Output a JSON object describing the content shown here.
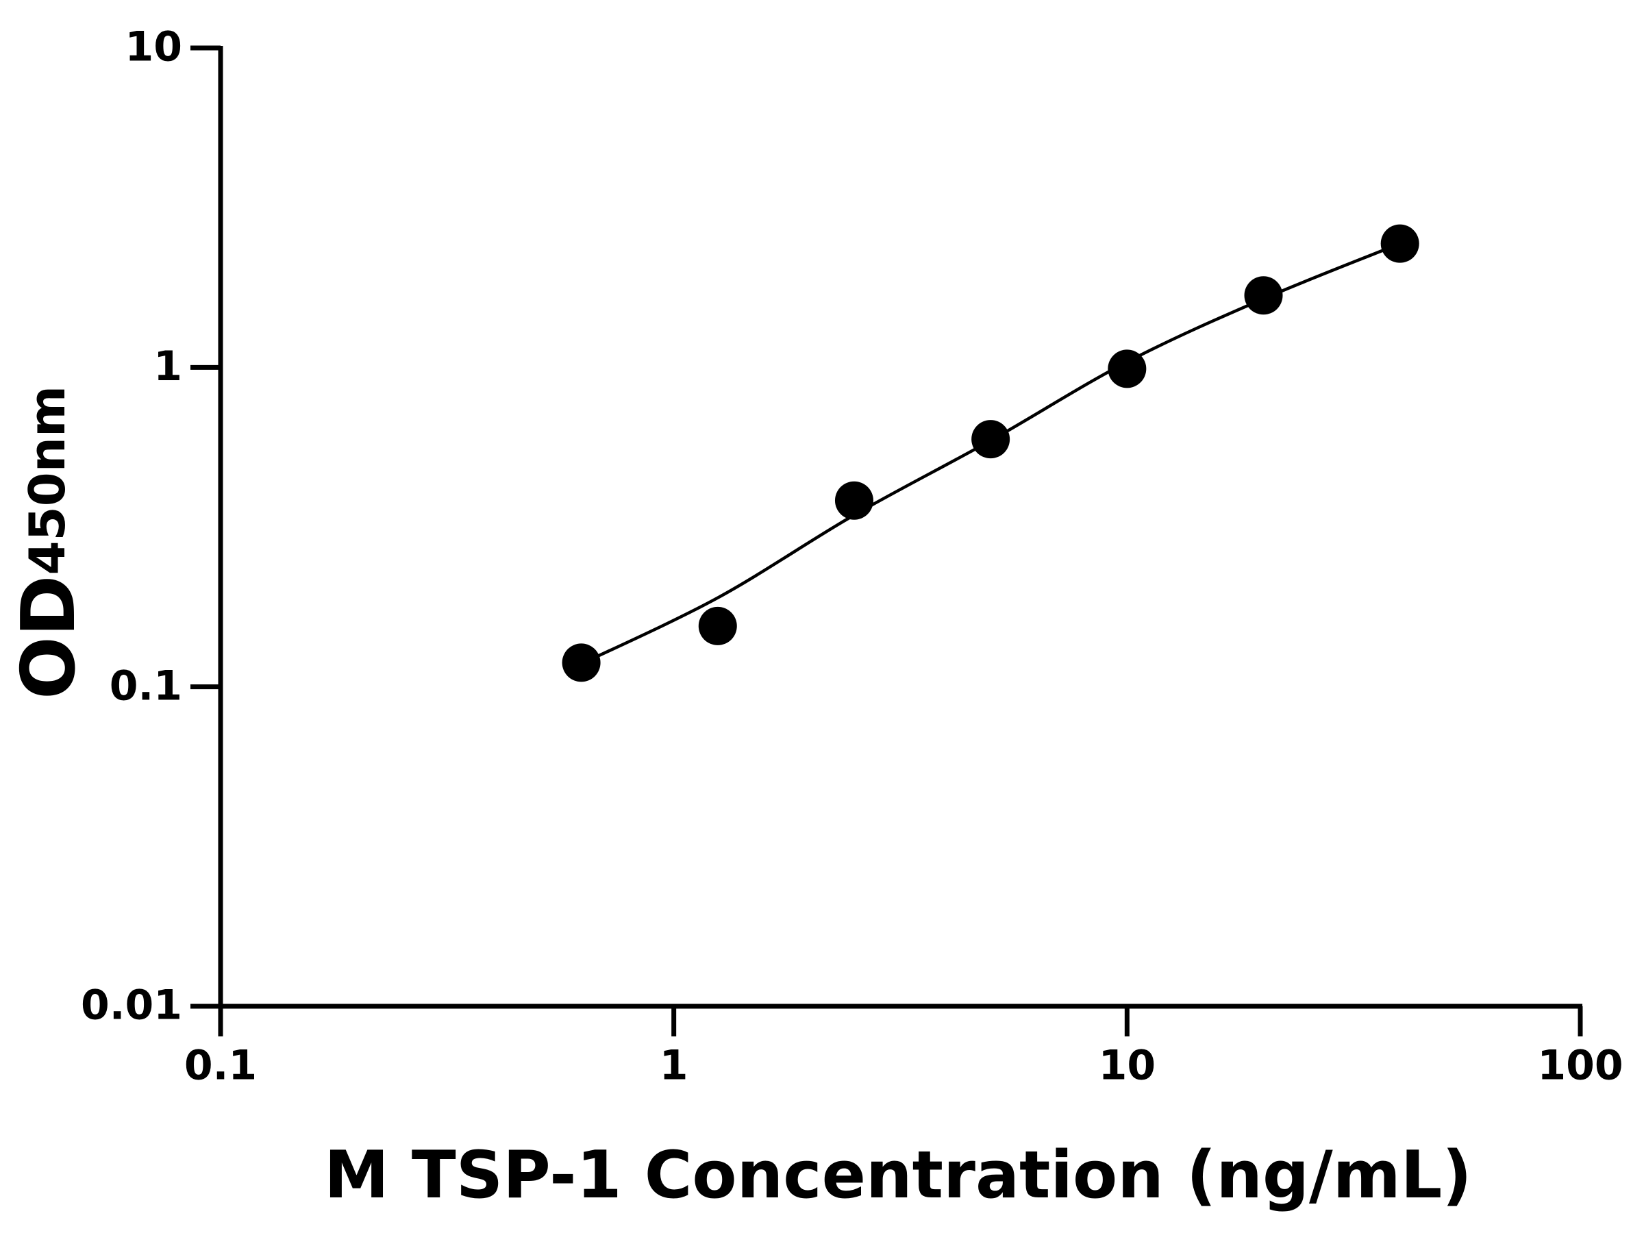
{
  "chart_data": {
    "type": "scatter",
    "x_label": "M TSP-1 Concentration (ng/mL)",
    "y_label": "OD",
    "y_label_sub": "450nm",
    "x": [
      0.625,
      1.25,
      2.5,
      5,
      10,
      20,
      40
    ],
    "values": [
      0.119,
      0.155,
      0.383,
      0.596,
      0.99,
      1.68,
      2.44
    ],
    "color": "#000000",
    "fit": {
      "x": [
        0.625,
        1.25,
        2.5,
        5,
        10,
        20,
        40
      ],
      "values": [
        0.118,
        0.19,
        0.345,
        0.59,
        1.04,
        1.64,
        2.44
      ]
    },
    "xscale": "log",
    "yscale": "log",
    "xlim": [
      0.1,
      100
    ],
    "ylim": [
      0.01,
      10
    ],
    "xticks": [
      0.1,
      1,
      10,
      100
    ],
    "yticks": [
      0.01,
      0.1,
      1,
      10
    ],
    "grid": false
  }
}
